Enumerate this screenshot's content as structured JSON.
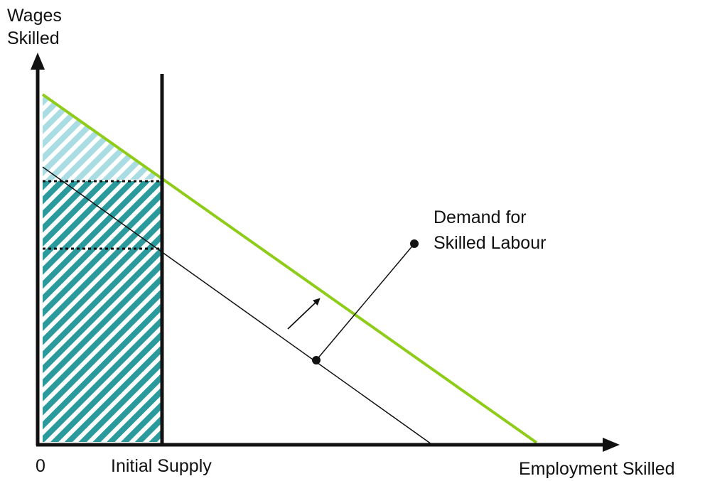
{
  "axes": {
    "y_label": [
      "Wages",
      "Skilled"
    ],
    "origin": "0",
    "x_label": "Employment Skilled"
  },
  "supply": {
    "label": "Initial Supply"
  },
  "demand": {
    "label": [
      "Demand for",
      "Skilled Labour"
    ]
  }
}
